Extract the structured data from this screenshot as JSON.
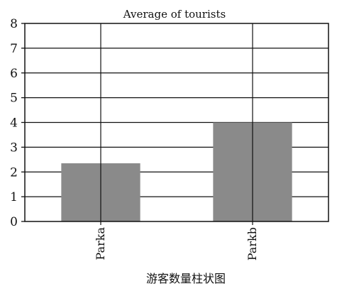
{
  "chart_data": {
    "type": "bar",
    "title": "Average of tourists",
    "categories": [
      "Parka",
      "Parkb"
    ],
    "values": [
      2.35,
      4.0
    ],
    "xlabel": "",
    "ylabel": "",
    "ylim": [
      0,
      8
    ],
    "yticks": [
      "0",
      "1",
      "2",
      "3",
      "4",
      "5",
      "6",
      "7",
      "8"
    ],
    "grid": true,
    "bar_color": "#8a8a8a",
    "caption": "游客数量柱状图"
  }
}
